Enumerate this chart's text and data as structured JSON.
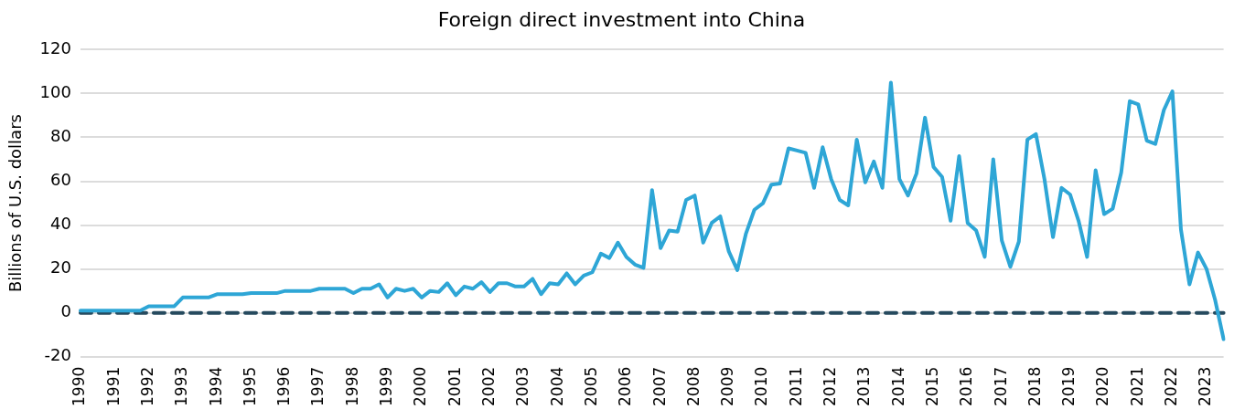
{
  "chart_data": {
    "type": "line",
    "title": "Foreign direct investment into China",
    "ylabel": "Billions of U.S. dollars",
    "categories": [
      "1990",
      null,
      null,
      null,
      "1991",
      null,
      null,
      null,
      "1992",
      null,
      null,
      null,
      "1993",
      null,
      null,
      null,
      "1994",
      null,
      null,
      null,
      "1995",
      null,
      null,
      null,
      "1996",
      null,
      null,
      null,
      "1997",
      null,
      null,
      null,
      "1998",
      null,
      null,
      null,
      "1999",
      null,
      null,
      null,
      "2000",
      null,
      null,
      null,
      "2001",
      null,
      null,
      null,
      "2002",
      null,
      null,
      null,
      "2003",
      null,
      null,
      null,
      "2004",
      null,
      null,
      null,
      "2005",
      null,
      null,
      null,
      "2006",
      null,
      null,
      null,
      "2007",
      null,
      null,
      null,
      "2008",
      null,
      null,
      null,
      "2009",
      null,
      null,
      null,
      "2010",
      null,
      null,
      null,
      "2011",
      null,
      null,
      null,
      "2012",
      null,
      null,
      null,
      "2013",
      null,
      null,
      null,
      "2014",
      null,
      null,
      null,
      "2015",
      null,
      null,
      null,
      "2016",
      null,
      null,
      null,
      "2017",
      null,
      null,
      null,
      "2018",
      null,
      null,
      null,
      "2019",
      null,
      null,
      null,
      "2020",
      null,
      null,
      null,
      "2021",
      null,
      null,
      null,
      "2022",
      null,
      null,
      null,
      "2023",
      null,
      null
    ],
    "series": [
      {
        "color": "#2ea6d6",
        "values": [
          1,
          1,
          1,
          1,
          1,
          1,
          1,
          1,
          3,
          3,
          3,
          3,
          7,
          7,
          7,
          7,
          8.5,
          8.5,
          8.5,
          8.5,
          9,
          9,
          9,
          9,
          10,
          10,
          10,
          10,
          11,
          11,
          11,
          11,
          9,
          11,
          11,
          13,
          7,
          11,
          10,
          11,
          7,
          10,
          9.5,
          13.5,
          8,
          12,
          11,
          14,
          9.5,
          13.5,
          13.5,
          12,
          12,
          15.5,
          8.5,
          13.5,
          13,
          18,
          13,
          17,
          18.5,
          27,
          25,
          32,
          25.5,
          22,
          20.5,
          56,
          29.5,
          37.5,
          37,
          51.5,
          53.5,
          32,
          41,
          44,
          28,
          19.5,
          36,
          47,
          50,
          58.5,
          59,
          75,
          74,
          73,
          57,
          75.5,
          61,
          51.5,
          49,
          79,
          59.5,
          69,
          57,
          105,
          61,
          53.5,
          63.5,
          89,
          66.5,
          62,
          42,
          71.5,
          41,
          37.5,
          25.5,
          70,
          33,
          21,
          32.5,
          79,
          81.5,
          61,
          34.5,
          57,
          54,
          42,
          25.5,
          65,
          45,
          47.5,
          64,
          96.5,
          95,
          78.5,
          77,
          92.5,
          101,
          38,
          13,
          27.5,
          20,
          6,
          -12
        ]
      }
    ],
    "ylim": [
      -20,
      120
    ],
    "yticks": [
      -20,
      0,
      20,
      40,
      60,
      80,
      100,
      120
    ],
    "grid": "y",
    "legend": false,
    "marker": "none",
    "line_style": "solid",
    "ref_lines": [
      {
        "axis": "y",
        "value": 0,
        "color": "#264a5e",
        "line_style": "dashed"
      }
    ]
  }
}
